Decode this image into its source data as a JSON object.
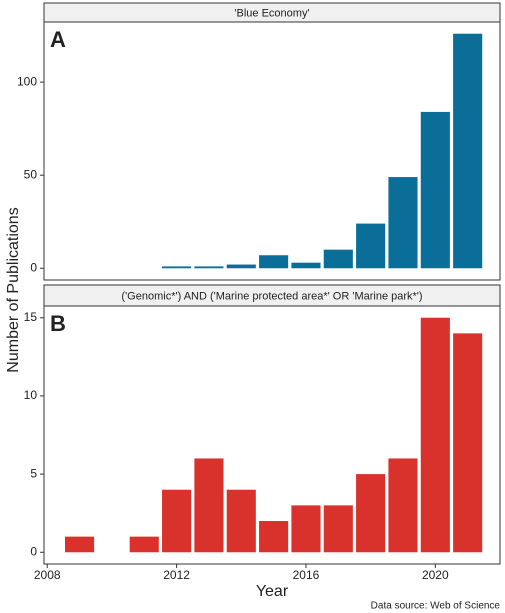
{
  "chart_data": [
    {
      "type": "bar",
      "title": "'Blue Economy'",
      "panel_label": "A",
      "x": [
        2012,
        2013,
        2014,
        2015,
        2016,
        2017,
        2018,
        2019,
        2020,
        2021
      ],
      "values": [
        1,
        1,
        2,
        7,
        3,
        10,
        24,
        49,
        84,
        126
      ],
      "color": "#0b6e99",
      "xlim": [
        2007.9,
        2022.0
      ],
      "ylim": [
        -6.3,
        132.3
      ],
      "yticks": [
        0,
        50,
        100
      ]
    },
    {
      "type": "bar",
      "title": "('Genomic*') AND ('Marine protected area*' OR 'Marine park*')",
      "panel_label": "B",
      "x": [
        2009,
        2011,
        2012,
        2013,
        2014,
        2015,
        2016,
        2017,
        2018,
        2019,
        2020,
        2021
      ],
      "values": [
        1,
        1,
        4,
        6,
        4,
        2,
        3,
        3,
        5,
        6,
        15,
        14
      ],
      "color": "#d9312b",
      "xlim": [
        2007.9,
        2022.0
      ],
      "ylim": [
        -0.75,
        15.75
      ],
      "yticks": [
        0,
        5,
        10,
        15
      ],
      "xticks": [
        2008,
        2012,
        2016,
        2020
      ]
    }
  ],
  "ylabel": "Number of Publications",
  "xlabel": "Year",
  "source": "Data source: Web of Science"
}
